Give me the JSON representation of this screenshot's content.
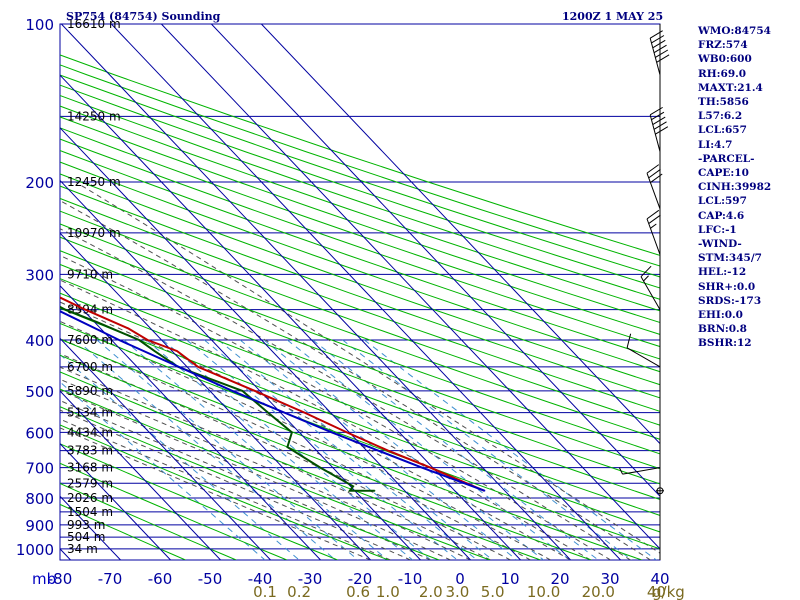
{
  "header": {
    "title": "SP754 (84754) Sounding",
    "date": "1200Z  1 MAY 25"
  },
  "side_panel": [
    "WMO:84754",
    "FRZ:574",
    "WB0:600",
    "RH:69.0",
    "MAXT:21.4",
    "TH:5856",
    "L57:6.2",
    "LCL:657",
    "LI:4.7",
    "-PARCEL-",
    "CAPE:10",
    "CINH:39982",
    "LCL:597",
    "CAP:4.6",
    "LFC:-1",
    "-WIND-",
    "STM:345/7",
    "HEL:-12",
    "SHR+:0.0",
    "SRDS:-173",
    "EHI:0.0",
    "BRN:0.8",
    "BSHR:12"
  ],
  "colors": {
    "grid": "#0000a0",
    "dry_adiabats": "#00b400",
    "moist_adiabats": "#505050",
    "mixing_ratio": "#4090d0",
    "temperature": "#c00000",
    "dewpoint": "#005000",
    "parcel": "#0000c0",
    "wind": "#000000",
    "mixing_labels": "#7a6a20"
  },
  "chart_data": {
    "type": "line",
    "title": "SP754 (84754) Sounding",
    "xlabel": "",
    "ylabel": "mb",
    "x_ticks": [
      -80,
      -70,
      -60,
      -50,
      -40,
      -30,
      -20,
      -10,
      0,
      10,
      20,
      30,
      40
    ],
    "xlim": [
      -80,
      40
    ],
    "skew": "skew-T (isotherms slanted)",
    "pressure_levels": [
      100,
      200,
      300,
      400,
      500,
      600,
      700,
      800,
      900,
      1000
    ],
    "ylim": [
      100,
      1050
    ],
    "y_scale": "log",
    "height_labels": [
      {
        "p": 100,
        "text": "16610 m"
      },
      {
        "p": 150,
        "text": "14250 m"
      },
      {
        "p": 200,
        "text": "12450 m"
      },
      {
        "p": 250,
        "text": "10970 m"
      },
      {
        "p": 300,
        "text": "9710 m"
      },
      {
        "p": 350,
        "text": "8594 m"
      },
      {
        "p": 400,
        "text": "7600 m"
      },
      {
        "p": 450,
        "text": "6700 m"
      },
      {
        "p": 500,
        "text": "5890 m"
      },
      {
        "p": 550,
        "text": "5134 m"
      },
      {
        "p": 600,
        "text": "4434 m"
      },
      {
        "p": 650,
        "text": "3783 m"
      },
      {
        "p": 700,
        "text": "3168 m"
      },
      {
        "p": 750,
        "text": "2579 m"
      },
      {
        "p": 800,
        "text": "2026 m"
      },
      {
        "p": 850,
        "text": "1504 m"
      },
      {
        "p": 900,
        "text": "993 m"
      },
      {
        "p": 950,
        "text": "504 m"
      },
      {
        "p": 1000,
        "text": "34 m"
      }
    ],
    "mixing_ratio_labels": [
      {
        "w": 0.1,
        "text": "0.1"
      },
      {
        "w": 0.2,
        "text": "0.2"
      },
      {
        "w": 0.6,
        "text": "0.6"
      },
      {
        "w": 1.0,
        "text": "1.0"
      },
      {
        "w": 2.0,
        "text": "2.0"
      },
      {
        "w": 3.0,
        "text": "3.0"
      },
      {
        "w": 5.0,
        "text": "5.0"
      },
      {
        "w": 10.0,
        "text": "10.0"
      },
      {
        "w": 20.0,
        "text": "20.0"
      },
      {
        "w": 40.0,
        "text": "40"
      }
    ],
    "mixing_unit": "g/kg",
    "series": [
      {
        "key": "temperature",
        "points": [
          {
            "p": 100,
            "t": -79.5
          },
          {
            "p": 110,
            "t": -80.0
          },
          {
            "p": 150,
            "t": -67.0
          },
          {
            "p": 200,
            "t": -57.0
          },
          {
            "p": 230,
            "t": -50.5
          },
          {
            "p": 250,
            "t": -47.0
          },
          {
            "p": 270,
            "t": -42.0
          },
          {
            "p": 300,
            "t": -37.5
          },
          {
            "p": 350,
            "t": -29.5
          },
          {
            "p": 380,
            "t": -24.5
          },
          {
            "p": 400,
            "t": -22.8
          },
          {
            "p": 420,
            "t": -19.0
          },
          {
            "p": 450,
            "t": -17.8
          },
          {
            "p": 500,
            "t": -11.0
          },
          {
            "p": 550,
            "t": -5.2
          },
          {
            "p": 600,
            "t": -0.5
          },
          {
            "p": 650,
            "t": 4.3
          },
          {
            "p": 700,
            "t": 9.5
          },
          {
            "p": 750,
            "t": 13.8
          },
          {
            "p": 775,
            "t": 15.9
          }
        ]
      },
      {
        "key": "dewpoint",
        "points": [
          {
            "p": 150,
            "t": -77.5
          },
          {
            "p": 200,
            "t": -72.0
          },
          {
            "p": 230,
            "t": -64.5
          },
          {
            "p": 250,
            "t": -52.5
          },
          {
            "p": 260,
            "t": -47.0
          },
          {
            "p": 280,
            "t": -44.5
          },
          {
            "p": 300,
            "t": -40.5
          },
          {
            "p": 350,
            "t": -33.5
          },
          {
            "p": 370,
            "t": -29.5
          },
          {
            "p": 400,
            "t": -24.5
          },
          {
            "p": 420,
            "t": -23.5
          },
          {
            "p": 450,
            "t": -21.8
          },
          {
            "p": 500,
            "t": -13.5
          },
          {
            "p": 550,
            "t": -12.5
          },
          {
            "p": 600,
            "t": -11.5
          },
          {
            "p": 640,
            "t": -15.2
          },
          {
            "p": 700,
            "t": -12.5
          },
          {
            "p": 760,
            "t": -9.5
          },
          {
            "p": 775,
            "t": -11.0
          },
          {
            "p": 775,
            "t": -6.0
          }
        ]
      },
      {
        "key": "parcel",
        "points": [
          {
            "p": 775,
            "t": 16.0
          },
          {
            "p": 700,
            "t": 7.8
          },
          {
            "p": 600,
            "t": -3.5
          },
          {
            "p": 500,
            "t": -15.5
          },
          {
            "p": 400,
            "t": -28.5
          },
          {
            "p": 300,
            "t": -43.0
          },
          {
            "p": 250,
            "t": -51.5
          },
          {
            "p": 200,
            "t": -62.0
          },
          {
            "p": 150,
            "t": -76.0
          },
          {
            "p": 140,
            "t": -79.0
          }
        ]
      }
    ],
    "wind_barbs": [
      {
        "p": 125,
        "dir": 345,
        "speed": 60
      },
      {
        "p": 175,
        "dir": 345,
        "speed": 50
      },
      {
        "p": 225,
        "dir": 340,
        "speed": 30
      },
      {
        "p": 275,
        "dir": 340,
        "speed": 25
      },
      {
        "p": 350,
        "dir": 330,
        "speed": 15
      },
      {
        "p": 450,
        "dir": 300,
        "speed": 10
      },
      {
        "p": 700,
        "dir": 260,
        "speed": 5
      },
      {
        "p": 775,
        "dir": 0,
        "speed": 0
      }
    ]
  }
}
